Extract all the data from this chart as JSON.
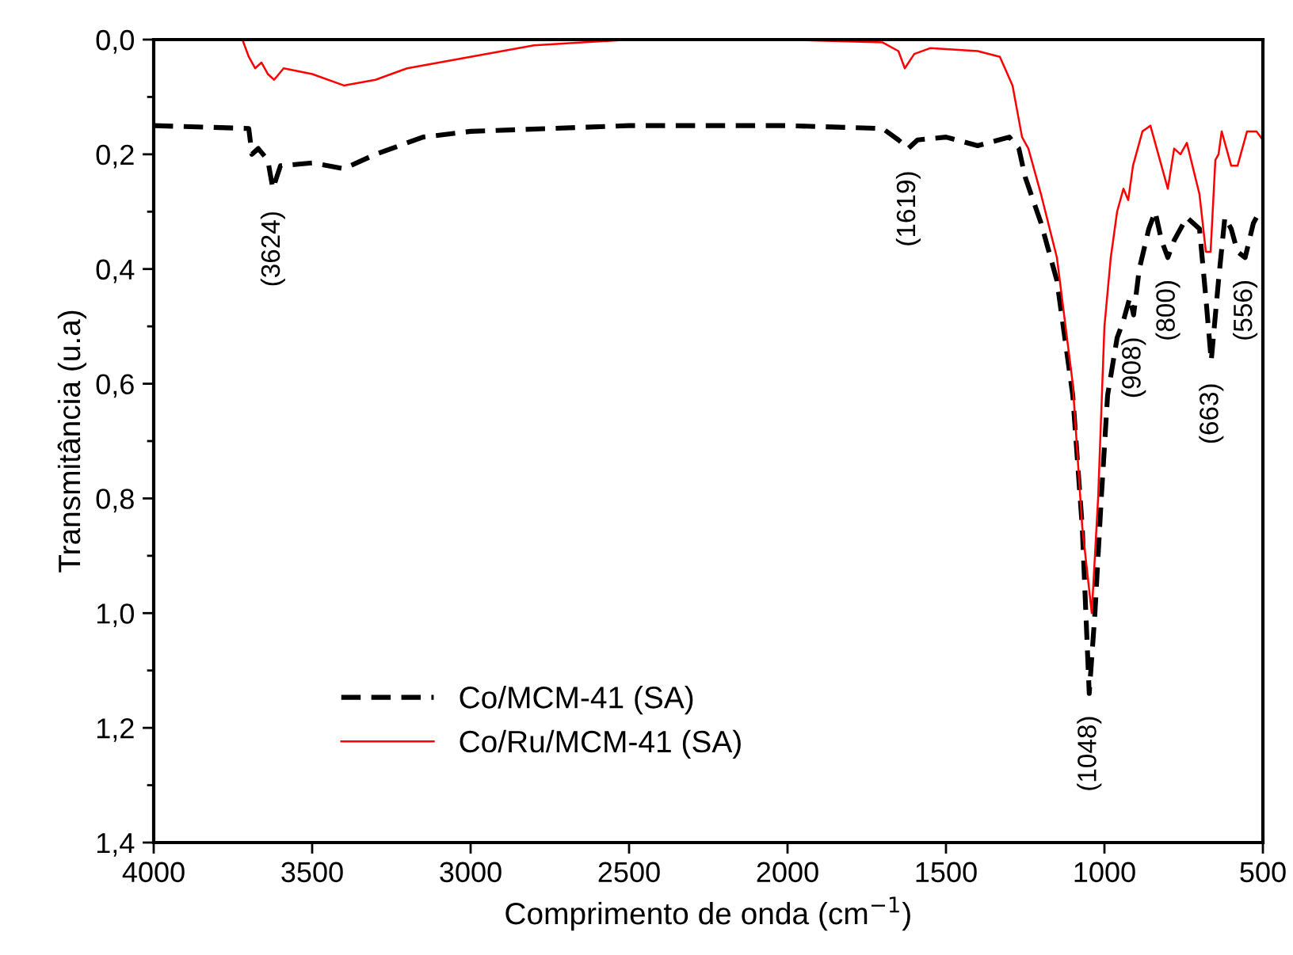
{
  "chart_data": {
    "type": "line",
    "xlabel": "Comprimento de onda (cm$^{−1}$)",
    "ylabel": "Transmitância (u.a)",
    "xlim": [
      4000,
      500
    ],
    "xticks": [
      4000,
      3500,
      3000,
      2500,
      2000,
      1500,
      1000,
      500
    ],
    "ylim": [
      1.4,
      0.0
    ],
    "yticks": [
      {
        "value": 0.0,
        "label": "0,0"
      },
      {
        "value": 0.1,
        "label": null
      },
      {
        "value": 0.2,
        "label": "0,2"
      },
      {
        "value": 0.3,
        "label": null
      },
      {
        "value": 0.4,
        "label": "0,4"
      },
      {
        "value": 0.5,
        "label": null
      },
      {
        "value": 0.6,
        "label": "0,6"
      },
      {
        "value": 0.7,
        "label": null
      },
      {
        "value": 0.8,
        "label": "0,8"
      },
      {
        "value": 0.9,
        "label": null
      },
      {
        "value": 1.0,
        "label": "1,0"
      },
      {
        "value": 1.1,
        "label": null
      },
      {
        "value": 1.2,
        "label": "1,2"
      },
      {
        "value": 1.3,
        "label": null
      },
      {
        "value": 1.4,
        "label": "1,4"
      }
    ],
    "grid": false,
    "legend": "bottom",
    "series": [
      {
        "name": "Co/MCM-41 (SA)",
        "color": "#000000",
        "line_style": "dashed",
        "x": [
          4000,
          3700,
          3690,
          3670,
          3640,
          3624,
          3600,
          3500,
          3400,
          3300,
          3150,
          3000,
          2500,
          2000,
          1700,
          1650,
          1619,
          1590,
          1500,
          1400,
          1300,
          1270,
          1250,
          1200,
          1150,
          1100,
          1070,
          1048,
          1030,
          1010,
          990,
          960,
          940,
          920,
          908,
          890,
          860,
          840,
          820,
          800,
          780,
          740,
          700,
          680,
          663,
          640,
          620,
          600,
          580,
          556,
          530,
          510
        ],
        "values": [
          0.15,
          0.155,
          0.2,
          0.19,
          0.21,
          0.26,
          0.22,
          0.215,
          0.225,
          0.2,
          0.17,
          0.16,
          0.15,
          0.15,
          0.155,
          0.175,
          0.19,
          0.175,
          0.17,
          0.185,
          0.17,
          0.19,
          0.24,
          0.32,
          0.42,
          0.62,
          0.85,
          1.14,
          1.0,
          0.8,
          0.62,
          0.52,
          0.49,
          0.45,
          0.48,
          0.4,
          0.33,
          0.3,
          0.35,
          0.38,
          0.35,
          0.31,
          0.33,
          0.45,
          0.56,
          0.42,
          0.31,
          0.33,
          0.37,
          0.38,
          0.32,
          0.3
        ]
      },
      {
        "name": "Co/Ru/MCM-41 (SA)",
        "color": "#ff0000",
        "line_style": "solid",
        "x": [
          4000,
          3720,
          3700,
          3680,
          3660,
          3640,
          3620,
          3590,
          3500,
          3400,
          3300,
          3200,
          3000,
          2800,
          2500,
          2000,
          1700,
          1650,
          1630,
          1600,
          1550,
          1400,
          1330,
          1290,
          1260,
          1240,
          1200,
          1150,
          1100,
          1070,
          1040,
          1020,
          1000,
          980,
          960,
          940,
          925,
          910,
          880,
          855,
          830,
          800,
          780,
          760,
          740,
          700,
          680,
          665,
          650,
          640,
          630,
          600,
          580,
          550,
          520,
          500
        ],
        "values": [
          0.0,
          0.0,
          0.03,
          0.05,
          0.04,
          0.06,
          0.07,
          0.05,
          0.06,
          0.08,
          0.07,
          0.05,
          0.03,
          0.01,
          0.0,
          0.0,
          0.005,
          0.02,
          0.05,
          0.025,
          0.015,
          0.02,
          0.03,
          0.08,
          0.17,
          0.19,
          0.27,
          0.38,
          0.6,
          0.85,
          1.0,
          0.8,
          0.5,
          0.38,
          0.3,
          0.26,
          0.28,
          0.22,
          0.16,
          0.15,
          0.2,
          0.26,
          0.19,
          0.2,
          0.18,
          0.27,
          0.37,
          0.37,
          0.21,
          0.2,
          0.16,
          0.22,
          0.22,
          0.16,
          0.16,
          0.175
        ]
      }
    ],
    "annotations": [
      {
        "text": "(3624)",
        "x": 3624,
        "y": 0.26
      },
      {
        "text": "(1619)",
        "x": 1619,
        "y": 0.19
      },
      {
        "text": "(1048)",
        "x": 1048,
        "y": 1.14
      },
      {
        "text": "(908)",
        "x": 908,
        "y": 0.48
      },
      {
        "text": "(800)",
        "x": 800,
        "y": 0.38
      },
      {
        "text": "(663)",
        "x": 663,
        "y": 0.56
      },
      {
        "text": "(556)",
        "x": 556,
        "y": 0.38
      }
    ]
  }
}
